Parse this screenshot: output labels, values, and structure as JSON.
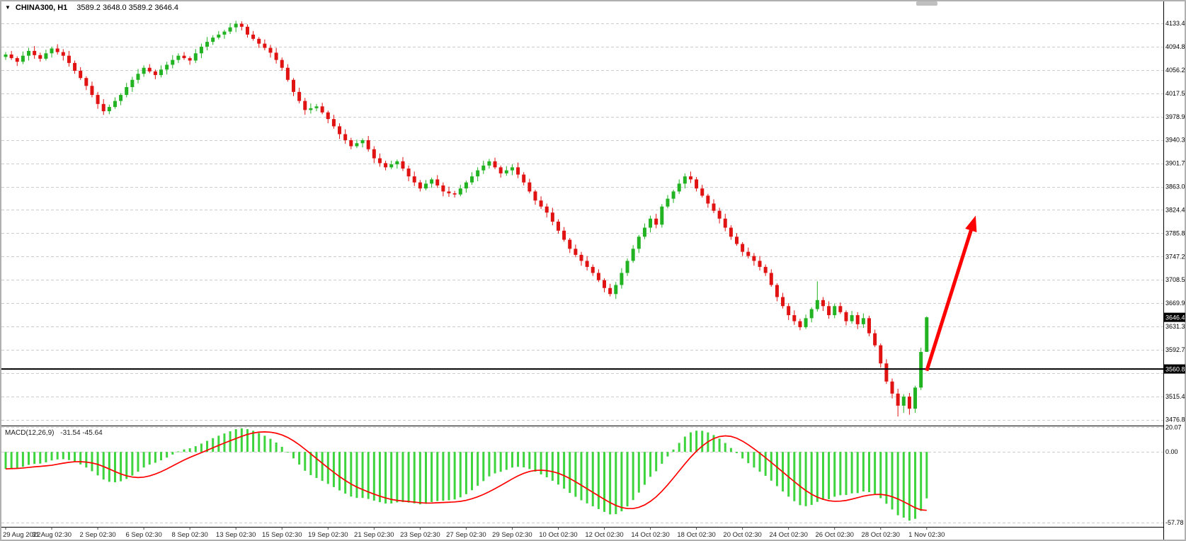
{
  "window": {
    "symbol_title": "CHINA300, H1",
    "ohlc_readout": "3589.2 3648.0 3589.2 3646.4"
  },
  "icons": {
    "symbol_dropdown": "▼"
  },
  "macd_panel": {
    "label": "MACD(12,26,9)",
    "values": "-31.54 -45.64"
  },
  "colors": {
    "bull": "#22b322",
    "bear": "#e11212",
    "macd_hist": "#3ed43e",
    "macd_signal": "#ff0000",
    "grid": "#cccccc",
    "separator": "#000000",
    "badge_bg": "#000000",
    "badge_text": "#ffffff",
    "axis_text": "#000000",
    "time_text": "#222222",
    "bg": "#ffffff",
    "frame": "#b0b0b0",
    "arrow": "#ff0000",
    "scrollbar": "#c0c0c0"
  },
  "chart_data": {
    "type": "candlestick",
    "symbol": "CHINA300",
    "timeframe": "H1",
    "current_bar": {
      "open": 3589.2,
      "high": 3648.0,
      "low": 3589.2,
      "close": 3646.4
    },
    "price_axis": {
      "min": 3467,
      "max": 4170,
      "ticks": [
        4133.4,
        4094.8,
        4056.2,
        4017.5,
        3978.9,
        3940.3,
        3901.7,
        3863.0,
        3824.4,
        3785.8,
        3747.2,
        3708.5,
        3669.9,
        3631.3,
        3592.7,
        3554.0,
        3515.4,
        3476.8
      ],
      "badges": [
        {
          "type": "current-price",
          "text": "3646.4",
          "value": 3646.4
        },
        {
          "type": "line-level",
          "text": "3560.8",
          "value": 3560.8
        }
      ]
    },
    "hline": {
      "value": 3560.8
    },
    "time_axis": {
      "bars_per_label": 8,
      "labels": [
        "29 Aug 2022",
        "31 Aug 02:30",
        "2 Sep 02:30",
        "6 Sep 02:30",
        "8 Sep 02:30",
        "13 Sep 02:30",
        "15 Sep 02:30",
        "19 Sep 02:30",
        "21 Sep 02:30",
        "23 Sep 02:30",
        "27 Sep 02:30",
        "29 Sep 02:30",
        "10 Oct 02:30",
        "12 Oct 02:30",
        "14 Oct 02:30",
        "18 Oct 02:30",
        "20 Oct 02:30",
        "24 Oct 02:30",
        "26 Oct 02:30",
        "28 Oct 02:30",
        "1 Nov 02:30"
      ]
    },
    "macd": {
      "params": "12,26,9",
      "value": -31.54,
      "signal": -45.64,
      "axis": {
        "max": 21.5,
        "min": -61.2,
        "labels": [
          {
            "text": "20.07",
            "value": 20.07
          },
          {
            "text": "0.00",
            "value": 0.0
          },
          {
            "text": "-57.78",
            "value": -57.78
          }
        ]
      }
    },
    "arrow": {
      "from": {
        "bar": 160,
        "price": 3558
      },
      "to": {
        "bar": 168.5,
        "price": 3815
      }
    },
    "candles": [
      [
        4078,
        4086,
        4073,
        4082
      ],
      [
        4082,
        4088,
        4073,
        4076
      ],
      [
        4076,
        4079,
        4063,
        4070
      ],
      [
        4070,
        4087,
        4066,
        4080
      ],
      [
        4080,
        4093,
        4072,
        4088
      ],
      [
        4088,
        4096,
        4075,
        4081
      ],
      [
        4081,
        4085,
        4070,
        4075
      ],
      [
        4075,
        4090,
        4072,
        4084
      ],
      [
        4084,
        4095,
        4077,
        4092
      ],
      [
        4092,
        4099,
        4082,
        4086
      ],
      [
        4086,
        4091,
        4072,
        4080
      ],
      [
        4080,
        4088,
        4062,
        4068
      ],
      [
        4068,
        4072,
        4050,
        4055
      ],
      [
        4055,
        4061,
        4040,
        4043
      ],
      [
        4043,
        4046,
        4023,
        4030
      ],
      [
        4030,
        4037,
        4011,
        4015
      ],
      [
        4015,
        4020,
        3992,
        4000
      ],
      [
        4000,
        4008,
        3982,
        3988
      ],
      [
        3988,
        3999,
        3983,
        3995
      ],
      [
        3995,
        4011,
        3992,
        4005
      ],
      [
        4005,
        4018,
        3998,
        4015
      ],
      [
        4015,
        4035,
        4011,
        4028
      ],
      [
        4028,
        4045,
        4020,
        4040
      ],
      [
        4040,
        4058,
        4034,
        4050
      ],
      [
        4050,
        4064,
        4045,
        4060
      ],
      [
        4060,
        4066,
        4051,
        4054
      ],
      [
        4054,
        4057,
        4041,
        4048
      ],
      [
        4048,
        4064,
        4044,
        4057
      ],
      [
        4057,
        4070,
        4049,
        4065
      ],
      [
        4065,
        4081,
        4059,
        4073
      ],
      [
        4073,
        4084,
        4068,
        4080
      ],
      [
        4080,
        4086,
        4073,
        4076
      ],
      [
        4076,
        4079,
        4065,
        4072
      ],
      [
        4072,
        4091,
        4068,
        4084
      ],
      [
        4084,
        4100,
        4076,
        4095
      ],
      [
        4095,
        4111,
        4089,
        4103
      ],
      [
        4103,
        4114,
        4098,
        4110
      ],
      [
        4110,
        4121,
        4107,
        4115
      ],
      [
        4115,
        4123,
        4108,
        4120
      ],
      [
        4120,
        4134,
        4116,
        4127
      ],
      [
        4127,
        4138,
        4119,
        4133
      ],
      [
        4133,
        4137,
        4122,
        4128
      ],
      [
        4128,
        4132,
        4110,
        4115
      ],
      [
        4115,
        4121,
        4105,
        4108
      ],
      [
        4108,
        4111,
        4093,
        4100
      ],
      [
        4100,
        4107,
        4089,
        4093
      ],
      [
        4093,
        4098,
        4077,
        4085
      ],
      [
        4085,
        4093,
        4067,
        4073
      ],
      [
        4073,
        4077,
        4055,
        4060
      ],
      [
        4060,
        4066,
        4037,
        4040
      ],
      [
        4040,
        4043,
        4013,
        4020
      ],
      [
        4020,
        4027,
        4001,
        4005
      ],
      [
        4005,
        4010,
        3982,
        3990
      ],
      [
        3990,
        4001,
        3984,
        3993
      ],
      [
        3993,
        4000,
        3988,
        3996
      ],
      [
        3996,
        4002,
        3983,
        3986
      ],
      [
        3986,
        3989,
        3968,
        3975
      ],
      [
        3975,
        3982,
        3959,
        3963
      ],
      [
        3963,
        3968,
        3942,
        3950
      ],
      [
        3950,
        3958,
        3934,
        3940
      ],
      [
        3940,
        3944,
        3925,
        3930
      ],
      [
        3930,
        3941,
        3927,
        3935
      ],
      [
        3935,
        3943,
        3928,
        3940
      ],
      [
        3940,
        3947,
        3921,
        3925
      ],
      [
        3925,
        3930,
        3902,
        3910
      ],
      [
        3910,
        3918,
        3896,
        3902
      ],
      [
        3902,
        3906,
        3890,
        3895
      ],
      [
        3895,
        3906,
        3892,
        3900
      ],
      [
        3900,
        3908,
        3893,
        3905
      ],
      [
        3905,
        3912,
        3889,
        3893
      ],
      [
        3893,
        3898,
        3872,
        3880
      ],
      [
        3880,
        3888,
        3864,
        3870
      ],
      [
        3870,
        3874,
        3855,
        3860
      ],
      [
        3860,
        3874,
        3857,
        3868
      ],
      [
        3868,
        3878,
        3861,
        3875
      ],
      [
        3875,
        3882,
        3861,
        3865
      ],
      [
        3865,
        3870,
        3847,
        3855
      ],
      [
        3855,
        3863,
        3846,
        3852
      ],
      [
        3852,
        3856,
        3845,
        3850
      ],
      [
        3850,
        3866,
        3847,
        3860
      ],
      [
        3860,
        3873,
        3853,
        3870
      ],
      [
        3870,
        3887,
        3866,
        3880
      ],
      [
        3880,
        3895,
        3872,
        3890
      ],
      [
        3890,
        3906,
        3884,
        3898
      ],
      [
        3898,
        3909,
        3893,
        3905
      ],
      [
        3905,
        3911,
        3892,
        3895
      ],
      [
        3895,
        3898,
        3878,
        3885
      ],
      [
        3885,
        3897,
        3881,
        3890
      ],
      [
        3890,
        3900,
        3882,
        3895
      ],
      [
        3895,
        3903,
        3877,
        3883
      ],
      [
        3883,
        3887,
        3865,
        3870
      ],
      [
        3870,
        3876,
        3852,
        3855
      ],
      [
        3855,
        3858,
        3833,
        3840
      ],
      [
        3840,
        3847,
        3826,
        3830
      ],
      [
        3830,
        3835,
        3812,
        3820
      ],
      [
        3820,
        3828,
        3799,
        3805
      ],
      [
        3805,
        3809,
        3785,
        3790
      ],
      [
        3790,
        3796,
        3772,
        3775
      ],
      [
        3775,
        3778,
        3753,
        3760
      ],
      [
        3760,
        3767,
        3746,
        3750
      ],
      [
        3750,
        3755,
        3732,
        3740
      ],
      [
        3740,
        3748,
        3724,
        3730
      ],
      [
        3730,
        3734,
        3715,
        3720
      ],
      [
        3720,
        3726,
        3705,
        3708
      ],
      [
        3708,
        3711,
        3688,
        3695
      ],
      [
        3695,
        3702,
        3681,
        3685
      ],
      [
        3685,
        3705,
        3677,
        3700
      ],
      [
        3700,
        3728,
        3694,
        3720
      ],
      [
        3720,
        3744,
        3715,
        3740
      ],
      [
        3740,
        3766,
        3737,
        3760
      ],
      [
        3760,
        3783,
        3753,
        3780
      ],
      [
        3780,
        3802,
        3776,
        3795
      ],
      [
        3795,
        3815,
        3787,
        3810
      ],
      [
        3810,
        3818,
        3794,
        3800
      ],
      [
        3800,
        3834,
        3795,
        3830
      ],
      [
        3830,
        3849,
        3827,
        3843
      ],
      [
        3843,
        3858,
        3836,
        3855
      ],
      [
        3855,
        3875,
        3851,
        3868
      ],
      [
        3868,
        3885,
        3860,
        3880
      ],
      [
        3880,
        3888,
        3869,
        3875
      ],
      [
        3875,
        3879,
        3855,
        3860
      ],
      [
        3860,
        3866,
        3845,
        3848
      ],
      [
        3848,
        3851,
        3828,
        3835
      ],
      [
        3835,
        3842,
        3819,
        3823
      ],
      [
        3823,
        3828,
        3802,
        3810
      ],
      [
        3810,
        3818,
        3789,
        3795
      ],
      [
        3795,
        3799,
        3775,
        3780
      ],
      [
        3780,
        3786,
        3765,
        3768
      ],
      [
        3768,
        3771,
        3748,
        3755
      ],
      [
        3755,
        3762,
        3744,
        3748
      ],
      [
        3748,
        3753,
        3732,
        3740
      ],
      [
        3740,
        3748,
        3724,
        3730
      ],
      [
        3730,
        3734,
        3715,
        3720
      ],
      [
        3720,
        3726,
        3697,
        3700
      ],
      [
        3700,
        3703,
        3673,
        3680
      ],
      [
        3680,
        3687,
        3661,
        3665
      ],
      [
        3665,
        3670,
        3642,
        3650
      ],
      [
        3650,
        3658,
        3634,
        3640
      ],
      [
        3640,
        3644,
        3625,
        3630
      ],
      [
        3630,
        3651,
        3627,
        3645
      ],
      [
        3645,
        3663,
        3638,
        3660
      ],
      [
        3660,
        3706,
        3656,
        3675
      ],
      [
        3675,
        3680,
        3657,
        3665
      ],
      [
        3665,
        3673,
        3644,
        3650
      ],
      [
        3650,
        3669,
        3645,
        3665
      ],
      [
        3665,
        3671,
        3652,
        3655
      ],
      [
        3655,
        3658,
        3633,
        3640
      ],
      [
        3640,
        3657,
        3636,
        3650
      ],
      [
        3650,
        3655,
        3627,
        3635
      ],
      [
        3635,
        3653,
        3629,
        3645
      ],
      [
        3645,
        3649,
        3615,
        3620
      ],
      [
        3620,
        3626,
        3597,
        3600
      ],
      [
        3600,
        3603,
        3563,
        3570
      ],
      [
        3570,
        3577,
        3536,
        3540
      ],
      [
        3540,
        3545,
        3512,
        3520
      ],
      [
        3520,
        3528,
        3482,
        3500
      ],
      [
        3500,
        3519,
        3488,
        3515
      ],
      [
        3515,
        3521,
        3485,
        3495
      ],
      [
        3495,
        3533,
        3488,
        3530
      ],
      [
        3530,
        3596,
        3526,
        3589
      ],
      [
        3589.2,
        3648.0,
        3589.2,
        3646.4
      ]
    ]
  }
}
